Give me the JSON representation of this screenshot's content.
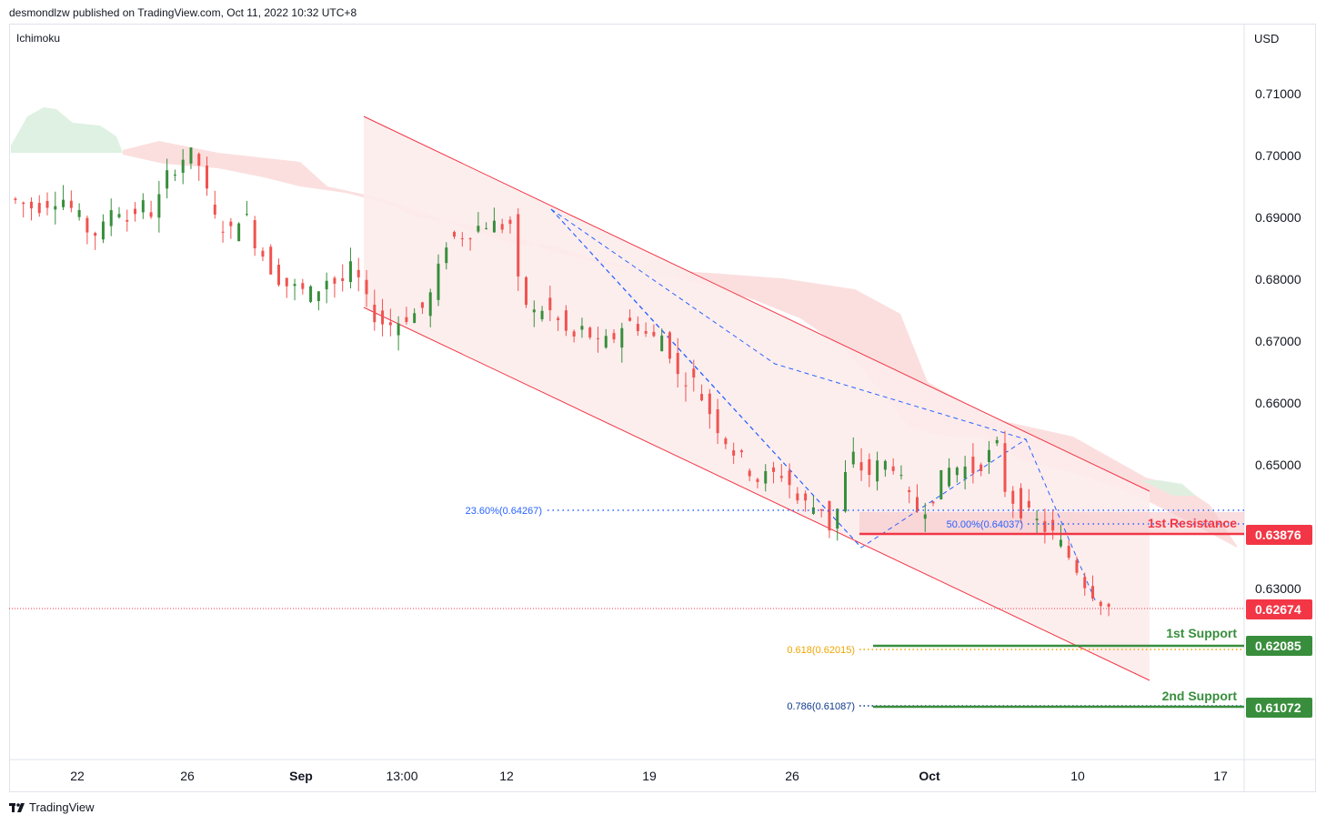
{
  "header": {
    "published_by": "desmondlzw published on TradingView.com, Oct 11, 2022 10:32 UTC+8"
  },
  "footer": {
    "brand": "TradingView"
  },
  "chart_data": {
    "type": "candlestick",
    "indicator_label": "Ichimoku",
    "currency_label": "USD",
    "y_ticks": [
      "0.71000",
      "0.70000",
      "0.69000",
      "0.68000",
      "0.67000",
      "0.66000",
      "0.65000",
      "0.63000"
    ],
    "ylim": [
      0.602,
      0.72
    ],
    "x_ticks": [
      "22",
      "26",
      "Sep",
      "13:00",
      "12",
      "19",
      "26",
      "Oct",
      "10",
      "17"
    ],
    "price_labels": [
      {
        "value": "0.63876",
        "color": "#f23645"
      },
      {
        "value": "0.62674",
        "color": "#f23645"
      },
      {
        "value": "0.62085",
        "color": "#388e3c"
      },
      {
        "value": "0.61072",
        "color": "#388e3c"
      }
    ],
    "annotations": {
      "resistance_1": "1st Resistance",
      "support_1": "1st Support",
      "support_2": "2nd Support"
    },
    "fibonacci": [
      {
        "label": "23.60%(0.64267)",
        "value": 0.64267,
        "color": "#2962ff"
      },
      {
        "label": "50.00%(0.64037)",
        "value": 0.64037,
        "color": "#2962ff"
      },
      {
        "label": "0.618(0.62015)",
        "value": 0.62015,
        "color": "#f0a500"
      },
      {
        "label": "0.786(0.61087)",
        "value": 0.61087,
        "color": "#0d3a8c"
      }
    ],
    "levels": {
      "resistance_1": 0.63876,
      "last_price": 0.62674,
      "support_1": 0.62085,
      "support_2": 0.61072
    },
    "colors": {
      "bull": "#26a69a",
      "up": "#388e3c",
      "down": "#ef5350",
      "channel": "#f23645",
      "cloud_red": "#fbd5d5",
      "cloud_green": "#dcefdf"
    },
    "close_path": [
      [
        0,
        0.693
      ],
      [
        10,
        0.6915
      ],
      [
        20,
        0.6935
      ],
      [
        30,
        0.688
      ],
      [
        35,
        0.687
      ],
      [
        40,
        0.6925
      ],
      [
        45,
        0.6895
      ],
      [
        50,
        0.692
      ],
      [
        55,
        0.6905
      ],
      [
        60,
        0.6965
      ],
      [
        65,
        0.6995
      ],
      [
        70,
        0.7
      ],
      [
        74,
        0.697
      ],
      [
        76,
        0.69
      ],
      [
        80,
        0.689
      ],
      [
        85,
        0.687
      ],
      [
        88,
        0.692
      ],
      [
        92,
        0.687
      ],
      [
        96,
        0.684
      ],
      [
        100,
        0.681
      ],
      [
        105,
        0.679
      ],
      [
        110,
        0.678
      ],
      [
        115,
        0.6775
      ],
      [
        120,
        0.68
      ],
      [
        125,
        0.679
      ],
      [
        130,
        0.682
      ],
      [
        135,
        0.676
      ],
      [
        140,
        0.673
      ],
      [
        145,
        0.6725
      ],
      [
        150,
        0.674
      ],
      [
        155,
        0.6745
      ],
      [
        160,
        0.678
      ],
      [
        165,
        0.686
      ],
      [
        170,
        0.687
      ],
      [
        175,
        0.688
      ],
      [
        180,
        0.689
      ],
      [
        185,
        0.6885
      ],
      [
        190,
        0.689
      ],
      [
        192,
        0.679
      ],
      [
        197,
        0.674
      ],
      [
        202,
        0.6755
      ],
      [
        207,
        0.673
      ],
      [
        212,
        0.67
      ],
      [
        217,
        0.672
      ],
      [
        222,
        0.669
      ],
      [
        227,
        0.67
      ],
      [
        232,
        0.673
      ],
      [
        237,
        0.6725
      ],
      [
        242,
        0.67
      ],
      [
        247,
        0.671
      ],
      [
        252,
        0.664
      ],
      [
        257,
        0.664
      ],
      [
        262,
        0.66
      ],
      [
        267,
        0.656
      ],
      [
        272,
        0.6525
      ],
      [
        277,
        0.65
      ],
      [
        282,
        0.6475
      ],
      [
        287,
        0.648
      ],
      [
        292,
        0.6485
      ],
      [
        297,
        0.644
      ],
      [
        302,
        0.643
      ],
      [
        307,
        0.643
      ],
      [
        310,
        0.638
      ],
      [
        314,
        0.647
      ],
      [
        318,
        0.651
      ],
      [
        323,
        0.648
      ],
      [
        328,
        0.65
      ],
      [
        333,
        0.65
      ],
      [
        338,
        0.6445
      ],
      [
        343,
        0.642
      ],
      [
        348,
        0.645
      ],
      [
        353,
        0.649
      ],
      [
        358,
        0.6495
      ],
      [
        363,
        0.649
      ],
      [
        368,
        0.651
      ],
      [
        373,
        0.653
      ],
      [
        375,
        0.646
      ],
      [
        380,
        0.643
      ],
      [
        385,
        0.641
      ],
      [
        390,
        0.6395
      ],
      [
        394,
        0.638
      ],
      [
        398,
        0.6355
      ],
      [
        402,
        0.633
      ],
      [
        406,
        0.63
      ],
      [
        410,
        0.6285
      ],
      [
        413,
        0.6267
      ]
    ]
  }
}
